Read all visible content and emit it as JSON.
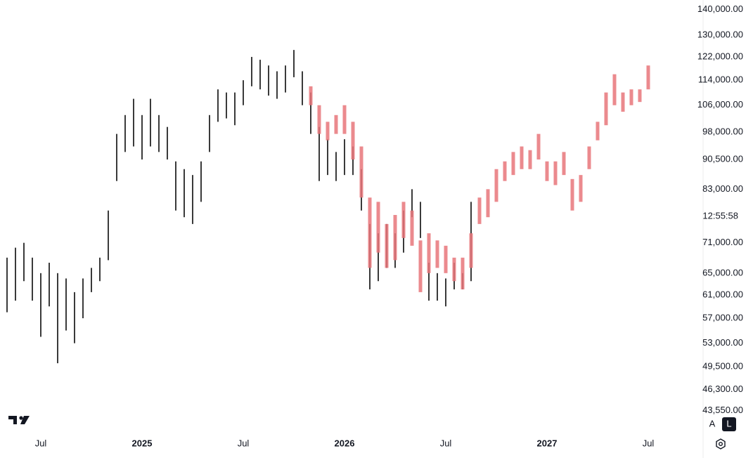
{
  "chart_data": {
    "type": "range-bar",
    "log_scale": true,
    "grid": false,
    "categories": [
      null,
      null,
      null,
      null,
      "Jul",
      null,
      null,
      null,
      null,
      null,
      null,
      null,
      null,
      null,
      null,
      null,
      "2025",
      null,
      null,
      null,
      null,
      null,
      null,
      null,
      null,
      null,
      null,
      null,
      "Jul",
      null,
      null,
      null,
      null,
      null,
      null,
      null,
      null,
      null,
      null,
      null,
      "2026",
      null,
      null,
      null,
      null,
      null,
      null,
      null,
      null,
      null,
      null,
      null,
      "Jul",
      null,
      null,
      null,
      null,
      null,
      null,
      null,
      null,
      null,
      null,
      null,
      "2027",
      null,
      null,
      null,
      null,
      null,
      null,
      null,
      null,
      null,
      null,
      null,
      "Jul",
      null
    ],
    "series": [
      {
        "color": "#3a3a3a",
        "high": [
          68000,
          70000,
          71000,
          68000,
          65000,
          67000,
          65000,
          64000,
          61500,
          64000,
          66000,
          68000,
          78000,
          97500,
          103000,
          108000,
          103000,
          108000,
          103000,
          99500,
          90000,
          88000,
          86500,
          90000,
          103000,
          111000,
          110000,
          110000,
          114000,
          122000,
          121000,
          119000,
          117000,
          119000,
          124500,
          117000,
          110000,
          99500,
          96000,
          92500,
          96000,
          94000,
          88000,
          75000,
          73000,
          75000,
          73000,
          78000,
          83000,
          80000,
          67000,
          65000,
          64000,
          67000,
          65000,
          80000,
          null,
          null,
          null,
          null,
          null,
          null,
          null,
          null,
          null,
          null,
          null,
          null,
          null,
          null,
          null,
          null,
          null,
          null,
          null,
          null,
          null,
          null
        ],
        "low": [
          58000,
          60000,
          63500,
          60000,
          54000,
          59000,
          50000,
          55000,
          53000,
          57000,
          61500,
          63500,
          67500,
          85000,
          92500,
          94000,
          90500,
          94000,
          92500,
          90500,
          78000,
          76500,
          75000,
          80000,
          92500,
          101000,
          102000,
          100000,
          106000,
          112000,
          111000,
          109000,
          108000,
          110000,
          115000,
          106000,
          97500,
          85000,
          86500,
          85000,
          86500,
          86500,
          78000,
          62000,
          63500,
          66000,
          66000,
          69000,
          76500,
          72000,
          60000,
          60000,
          59000,
          62000,
          62000,
          63500,
          null,
          null,
          null,
          null,
          null,
          null,
          null,
          null,
          null,
          null,
          null,
          null,
          null,
          null,
          null,
          null,
          null,
          null,
          null,
          null,
          null,
          null
        ]
      },
      {
        "color": "#e8757a",
        "high": [
          null,
          null,
          null,
          null,
          null,
          null,
          null,
          null,
          null,
          null,
          null,
          null,
          null,
          null,
          null,
          null,
          null,
          null,
          null,
          null,
          null,
          null,
          null,
          null,
          null,
          null,
          null,
          null,
          null,
          null,
          null,
          null,
          null,
          null,
          null,
          null,
          112000,
          106000,
          101000,
          103000,
          106000,
          101000,
          94000,
          81000,
          80000,
          75000,
          77000,
          80000,
          78000,
          71500,
          73000,
          71500,
          70400,
          68000,
          68000,
          73000,
          81000,
          83000,
          88000,
          90000,
          92500,
          94000,
          93000,
          97500,
          90000,
          90000,
          92500,
          85500,
          86500,
          94000,
          101000,
          110000,
          116000,
          110000,
          111000,
          111000,
          119000,
          null
        ],
        "low": [
          null,
          null,
          null,
          null,
          null,
          null,
          null,
          null,
          null,
          null,
          null,
          null,
          null,
          null,
          null,
          null,
          null,
          null,
          null,
          null,
          null,
          null,
          null,
          null,
          null,
          null,
          null,
          null,
          null,
          null,
          null,
          null,
          null,
          null,
          null,
          null,
          106000,
          97500,
          95700,
          97500,
          97500,
          90500,
          81000,
          66000,
          69000,
          66000,
          67500,
          72000,
          70400,
          61500,
          65000,
          66000,
          65000,
          63500,
          62000,
          66000,
          75000,
          76500,
          80000,
          85000,
          86500,
          88000,
          88000,
          90500,
          85000,
          84000,
          86500,
          78000,
          80000,
          88000,
          95700,
          100000,
          106000,
          104000,
          106000,
          107000,
          111000,
          null
        ]
      }
    ],
    "ylim": [
      42200,
      144000
    ],
    "yticks": [
      {
        "value": 140000,
        "label": "140,000.00"
      },
      {
        "value": 130000,
        "label": "130,000.00"
      },
      {
        "value": 122000,
        "label": "122,000.00"
      },
      {
        "value": 114000,
        "label": "114,000.00"
      },
      {
        "value": 106000,
        "label": "106,000.00"
      },
      {
        "value": 98000,
        "label": "98,000.00"
      },
      {
        "value": 90500,
        "label": "90,500.00"
      },
      {
        "value": 83000,
        "label": "83,000.00"
      },
      {
        "value": 71000,
        "label": "71,000.00"
      },
      {
        "value": 65000,
        "label": "65,000.00"
      },
      {
        "value": 61000,
        "label": "61,000.00"
      },
      {
        "value": 57000,
        "label": "57,000.00"
      },
      {
        "value": 53000,
        "label": "53,000.00"
      },
      {
        "value": 49500,
        "label": "49,500.00"
      },
      {
        "value": 46300,
        "label": "46,300.00"
      },
      {
        "value": 43550,
        "label": "43,550.00"
      }
    ],
    "countdown": "12:55:58",
    "scale_buttons": [
      "A",
      "L"
    ]
  }
}
